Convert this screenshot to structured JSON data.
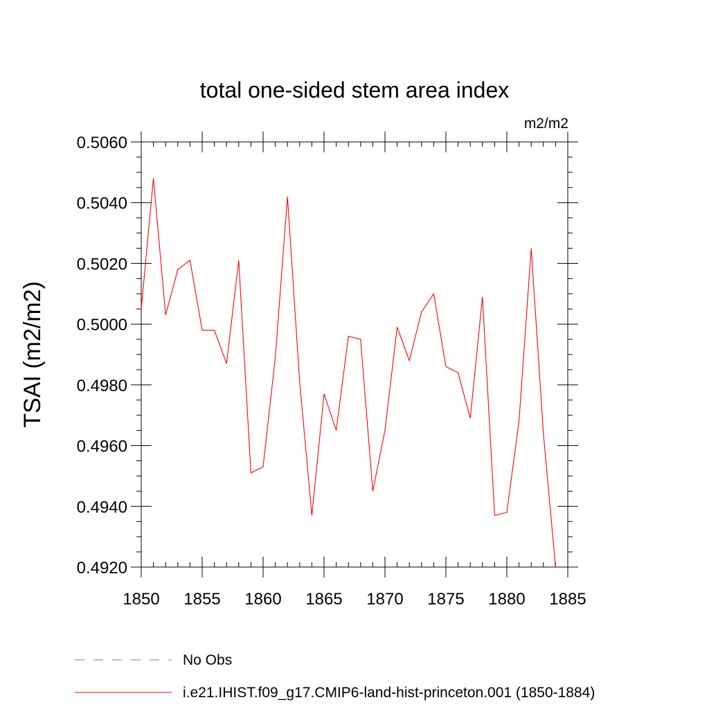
{
  "chart_data": {
    "type": "line",
    "title": "total one-sided stem area index",
    "units": "m2/m2",
    "ylabel": "TSAI  (m2/m2)",
    "xlabel": "",
    "xlim": [
      1850,
      1885
    ],
    "ylim": [
      0.492,
      0.506
    ],
    "x_ticks": [
      1850,
      1855,
      1860,
      1865,
      1870,
      1875,
      1880,
      1885
    ],
    "y_ticks": [
      "0.4920",
      "0.4940",
      "0.4960",
      "0.4980",
      "0.5000",
      "0.5020",
      "0.5040",
      "0.5060"
    ],
    "grid": false,
    "series": [
      {
        "name": "i.e21.IHIST.f09_g17.CMIP6-land-hist-princeton.001 (1850-1884)",
        "color": "#ff0000",
        "style": "solid",
        "x": [
          1850,
          1851,
          1852,
          1853,
          1854,
          1855,
          1856,
          1857,
          1858,
          1859,
          1860,
          1861,
          1862,
          1863,
          1864,
          1865,
          1866,
          1867,
          1868,
          1869,
          1870,
          1871,
          1872,
          1873,
          1874,
          1875,
          1876,
          1877,
          1878,
          1879,
          1880,
          1881,
          1882,
          1883,
          1884
        ],
        "y": [
          0.5005,
          0.5048,
          0.5003,
          0.5018,
          0.5021,
          0.4998,
          0.4998,
          0.4987,
          0.5021,
          0.4951,
          0.4953,
          0.4989,
          0.5042,
          0.4981,
          0.4937,
          0.4977,
          0.4965,
          0.4996,
          0.4995,
          0.4945,
          0.4965,
          0.4999,
          0.4988,
          0.5004,
          0.501,
          0.4986,
          0.4984,
          0.4969,
          0.5009,
          0.4937,
          0.4938,
          0.4968,
          0.5025,
          0.4964,
          0.492
        ]
      }
    ],
    "legend": {
      "placement": "bottom",
      "entries": [
        {
          "label": "No Obs",
          "color": "#7b6fb8",
          "style": "dashed"
        },
        {
          "label": "i.e21.IHIST.f09_g17.CMIP6-land-hist-princeton.001 (1850-1884)",
          "color": "#ff0000",
          "style": "solid"
        }
      ]
    }
  }
}
